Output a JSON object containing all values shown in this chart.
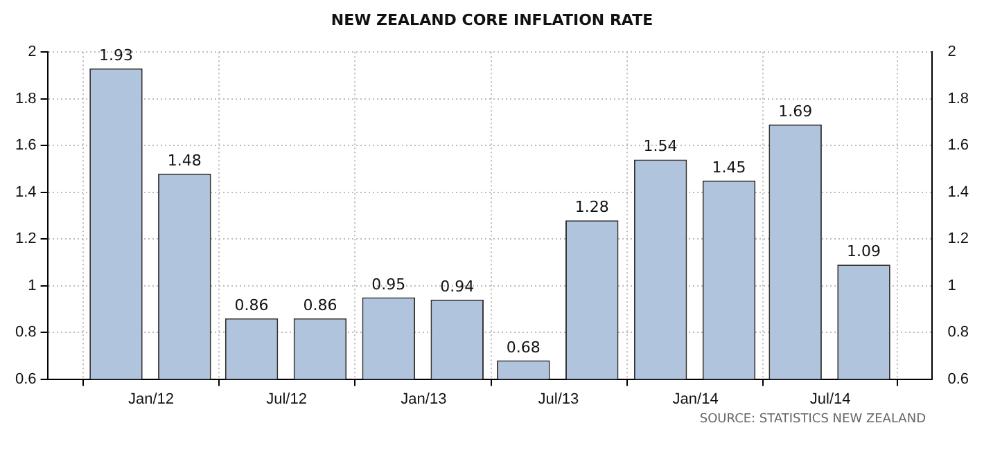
{
  "chart_data": {
    "type": "bar",
    "title": "NEW ZEALAND CORE INFLATION RATE",
    "x": [
      "2011-11-15",
      "2012-02-15",
      "2012-05-15",
      "2012-08-15",
      "2012-11-15",
      "2013-02-15",
      "2013-05-15",
      "2013-08-15",
      "2013-11-15",
      "2014-02-15",
      "2014-05-15",
      "2014-08-15"
    ],
    "values": [
      1.93,
      1.48,
      0.86,
      0.86,
      0.95,
      0.94,
      0.68,
      1.28,
      1.54,
      1.45,
      1.69,
      1.09
    ],
    "color": "#b0c4de",
    "xlim": [
      "2011-08-15",
      "2014-11-15"
    ],
    "xticks": [
      {
        "value": "2012-01-01",
        "label": "Jan/12"
      },
      {
        "value": "2012-07-01",
        "label": "Jul/12"
      },
      {
        "value": "2013-01-01",
        "label": "Jan/13"
      },
      {
        "value": "2013-07-01",
        "label": "Jul/13"
      },
      {
        "value": "2014-01-01",
        "label": "Jan/14"
      },
      {
        "value": "2014-07-01",
        "label": "Jul/14"
      }
    ],
    "ylim": [
      0.6,
      2
    ],
    "yticks": [
      0.6,
      0.8,
      1,
      1.2,
      1.4,
      1.6,
      1.8,
      2
    ],
    "y2lim": [
      0.6,
      2
    ],
    "y2ticks": [
      0.6,
      0.8,
      1,
      1.2,
      1.4,
      1.6,
      1.8,
      2
    ],
    "grid": true,
    "data_labels": true,
    "annotations": [
      "SOURCE: STATISTICS NEW ZEALAND"
    ]
  }
}
